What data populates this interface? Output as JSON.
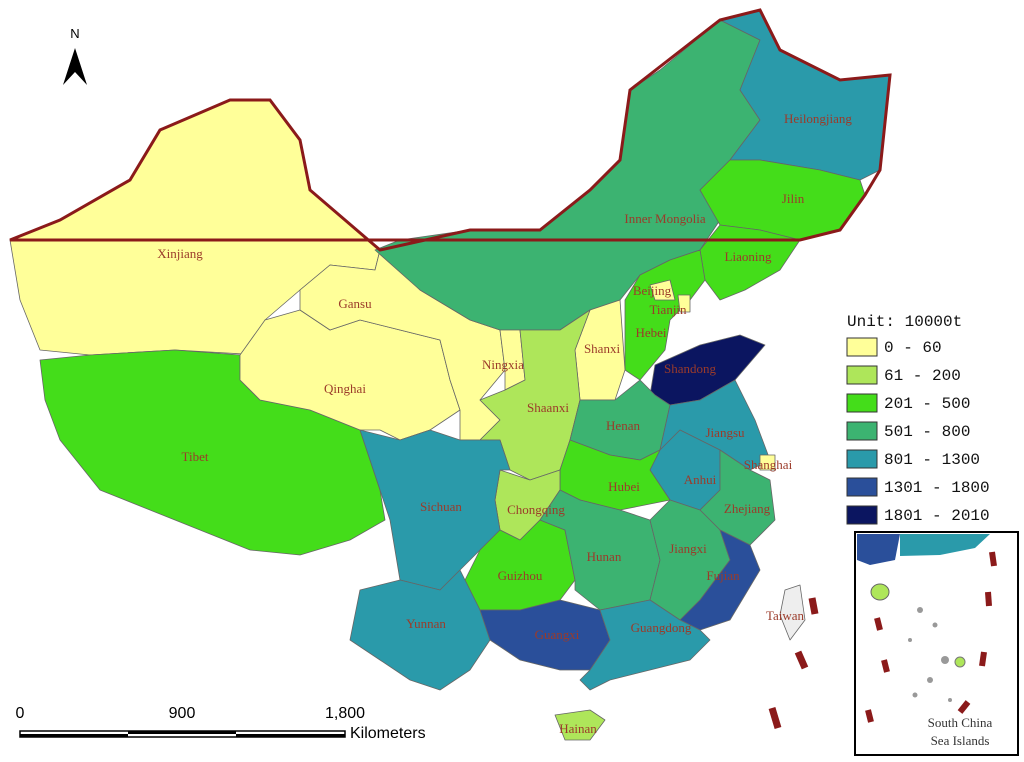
{
  "north": "N",
  "regions": [
    {
      "name": "Xinjiang",
      "color": "#ffff99"
    },
    {
      "name": "Tibet",
      "color": "#44dd1a"
    },
    {
      "name": "Qinghai",
      "color": "#ffff99"
    },
    {
      "name": "Gansu",
      "color": "#ffff99"
    },
    {
      "name": "Inner Mongolia",
      "color": "#3cb371"
    },
    {
      "name": "Heilongjiang",
      "color": "#2a9aaa"
    },
    {
      "name": "Jilin",
      "color": "#44dd1a"
    },
    {
      "name": "Liaoning",
      "color": "#44dd1a"
    },
    {
      "name": "Hebei",
      "color": "#44dd1a"
    },
    {
      "name": "Beijing",
      "color": "#ffff99"
    },
    {
      "name": "Tianjin",
      "color": "#ffff99"
    },
    {
      "name": "Shanxi",
      "color": "#ffff99"
    },
    {
      "name": "Ningxia",
      "color": "#ffff99"
    },
    {
      "name": "Shaanxi",
      "color": "#aee65a"
    },
    {
      "name": "Shandong",
      "color": "#0b1560"
    },
    {
      "name": "Henan",
      "color": "#3cb371"
    },
    {
      "name": "Jiangsu",
      "color": "#2a9aaa"
    },
    {
      "name": "Anhui",
      "color": "#2a9aaa"
    },
    {
      "name": "Shanghai",
      "color": "#ffff99"
    },
    {
      "name": "Zhejiang",
      "color": "#3cb371"
    },
    {
      "name": "Hubei",
      "color": "#44dd1a"
    },
    {
      "name": "Chongqing",
      "color": "#aee65a"
    },
    {
      "name": "Sichuan",
      "color": "#2a9aaa"
    },
    {
      "name": "Guizhou",
      "color": "#44dd1a"
    },
    {
      "name": "Hunan",
      "color": "#3cb371"
    },
    {
      "name": "Jiangxi",
      "color": "#3cb371"
    },
    {
      "name": "Fujian",
      "color": "#2a4f9a"
    },
    {
      "name": "Yunnan",
      "color": "#2a9aaa"
    },
    {
      "name": "Guangxi",
      "color": "#2a4f9a"
    },
    {
      "name": "Guangdong",
      "color": "#2a9aaa"
    },
    {
      "name": "Hainan",
      "color": "#aee65a"
    },
    {
      "name": "Taiwan",
      "color": "#eeeeee"
    }
  ],
  "legend": {
    "title": "Unit: 10000t",
    "items": [
      {
        "label": "0 - 60",
        "color": "#ffff99"
      },
      {
        "label": "61 - 200",
        "color": "#aee65a"
      },
      {
        "label": "201 - 500",
        "color": "#44dd1a"
      },
      {
        "label": "501 - 800",
        "color": "#3cb371"
      },
      {
        "label": "801 - 1300",
        "color": "#2a9aaa"
      },
      {
        "label": "1301 - 1800",
        "color": "#2a4f9a"
      },
      {
        "label": "1801 - 2010",
        "color": "#0b1560"
      }
    ]
  },
  "scale_bar": {
    "labels": [
      "0",
      "900",
      "1,800"
    ],
    "unit": "Kilometers"
  },
  "inset": {
    "lines": [
      "South China",
      "Sea Islands"
    ]
  }
}
